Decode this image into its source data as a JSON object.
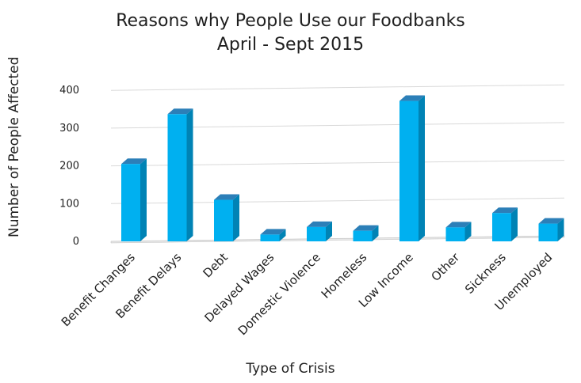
{
  "chart_data": {
    "type": "bar",
    "title": "Reasons why People Use our Foodbanks",
    "subtitle": "April - Sept 2015",
    "xlabel": "Type of Crisis",
    "ylabel": "Number of People Affected",
    "categories": [
      "Benefit Changes",
      "Benefit Delays",
      "Debt",
      "Delayed Wages",
      "Domestic Violence",
      "Homeless",
      "Low Income",
      "Other",
      "Sickness",
      "Unemployed"
    ],
    "values": [
      205,
      337,
      110,
      18,
      38,
      28,
      372,
      37,
      75,
      47
    ],
    "ylim": [
      0,
      400
    ],
    "yticks": [
      0,
      100,
      200,
      300,
      400
    ],
    "grid": true,
    "legend": "none",
    "colors": {
      "bar_front": "#00B0F0",
      "bar_side": "#0083B5",
      "bar_top": "#2C7FB8",
      "grid": "#d9d9d9",
      "floor": "#bfbfbf",
      "text": "#1f1f1f"
    }
  }
}
